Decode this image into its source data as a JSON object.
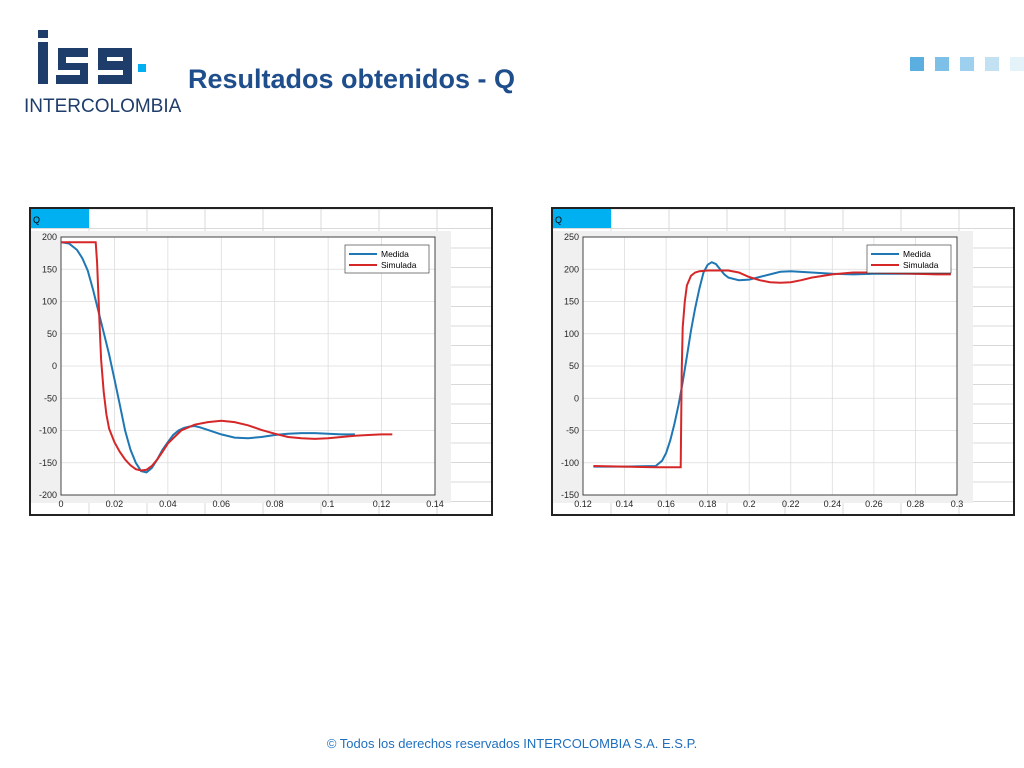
{
  "header": {
    "logo_text": "INTERCOLOMBIA",
    "title": "Resultados obtenidos - Q"
  },
  "colors": {
    "title": "#1f4e8c",
    "logo": "#1f3d6b",
    "accent": "#00b0f0",
    "medida": "#1f77b4",
    "simulada": "#d62728"
  },
  "footer": {
    "text": "© Todos los derechos reservados INTERCOLOMBIA S.A. E.S.P."
  },
  "chart_data": [
    {
      "type": "line",
      "tab_label": "Q",
      "title": "",
      "xlabel": "",
      "ylabel": "",
      "xlim": [
        0,
        0.14
      ],
      "ylim": [
        -200,
        200
      ],
      "xticks": [
        0,
        0.02,
        0.04,
        0.06,
        0.08,
        0.1,
        0.12,
        0.14
      ],
      "xtick_labels": [
        "0",
        "0.02",
        "0.04",
        "0.06",
        "0.08",
        "0.1",
        "0.12",
        "0.14"
      ],
      "yticks": [
        200,
        150,
        100,
        50,
        0,
        -50,
        -100,
        -150,
        -200
      ],
      "ytick_labels": [
        "200",
        "150",
        "100",
        "50",
        "0",
        "-50",
        "-100",
        "-150",
        "-200"
      ],
      "grid": true,
      "legend": "top-right",
      "series": [
        {
          "name": "Medida",
          "color": "#1f77b4",
          "x": [
            0,
            0.003,
            0.006,
            0.008,
            0.01,
            0.012,
            0.014,
            0.016,
            0.018,
            0.02,
            0.022,
            0.024,
            0.026,
            0.028,
            0.03,
            0.032,
            0.034,
            0.036,
            0.038,
            0.04,
            0.042,
            0.044,
            0.046,
            0.048,
            0.05,
            0.052,
            0.055,
            0.06,
            0.065,
            0.07,
            0.075,
            0.08,
            0.085,
            0.09,
            0.095,
            0.1,
            0.105,
            0.11
          ],
          "y": [
            192,
            190,
            180,
            167,
            148,
            118,
            85,
            52,
            18,
            -20,
            -60,
            -100,
            -130,
            -150,
            -163,
            -165,
            -158,
            -145,
            -130,
            -118,
            -107,
            -100,
            -96,
            -94,
            -93,
            -95,
            -99,
            -106,
            -111,
            -112,
            -110,
            -107,
            -105,
            -104,
            -104,
            -105,
            -106,
            -106
          ]
        },
        {
          "name": "Simulada",
          "color": "#d62728",
          "x": [
            0,
            0.013,
            0.0135,
            0.014,
            0.0145,
            0.015,
            0.016,
            0.017,
            0.018,
            0.02,
            0.022,
            0.024,
            0.026,
            0.028,
            0.03,
            0.032,
            0.034,
            0.036,
            0.038,
            0.04,
            0.045,
            0.05,
            0.055,
            0.06,
            0.065,
            0.07,
            0.075,
            0.08,
            0.085,
            0.09,
            0.095,
            0.1,
            0.105,
            0.11,
            0.115,
            0.12,
            0.124
          ],
          "y": [
            192,
            192,
            160,
            110,
            60,
            10,
            -40,
            -75,
            -97,
            -118,
            -133,
            -145,
            -154,
            -160,
            -162,
            -161,
            -155,
            -145,
            -133,
            -120,
            -100,
            -91,
            -87,
            -85,
            -87,
            -92,
            -99,
            -105,
            -110,
            -112,
            -113,
            -112,
            -110,
            -108,
            -107,
            -106,
            -106
          ]
        }
      ]
    },
    {
      "type": "line",
      "tab_label": "Q",
      "title": "",
      "xlabel": "",
      "ylabel": "",
      "xlim": [
        0.12,
        0.3
      ],
      "ylim": [
        -150,
        250
      ],
      "xticks": [
        0.12,
        0.14,
        0.16,
        0.18,
        0.2,
        0.22,
        0.24,
        0.26,
        0.28,
        0.3
      ],
      "xtick_labels": [
        "0.12",
        "0.14",
        "0.16",
        "0.18",
        "0.2",
        "0.22",
        "0.24",
        "0.26",
        "0.28",
        "0.3"
      ],
      "yticks": [
        250,
        200,
        150,
        100,
        50,
        0,
        -50,
        -100,
        -150
      ],
      "ytick_labels": [
        "250",
        "200",
        "150",
        "100",
        "50",
        "0",
        "-50",
        "-100",
        "-150"
      ],
      "grid": true,
      "legend": "top-right",
      "series": [
        {
          "name": "Medida",
          "color": "#1f77b4",
          "x": [
            0.125,
            0.14,
            0.155,
            0.158,
            0.16,
            0.162,
            0.164,
            0.166,
            0.168,
            0.17,
            0.172,
            0.174,
            0.176,
            0.178,
            0.18,
            0.182,
            0.184,
            0.186,
            0.188,
            0.19,
            0.195,
            0.2,
            0.205,
            0.21,
            0.215,
            0.22,
            0.23,
            0.24,
            0.25,
            0.26,
            0.27,
            0.28,
            0.29,
            0.297
          ],
          "y": [
            -106,
            -106,
            -105,
            -97,
            -85,
            -65,
            -40,
            -10,
            25,
            65,
            105,
            140,
            170,
            195,
            207,
            211,
            208,
            200,
            192,
            187,
            183,
            184,
            188,
            192,
            196,
            197,
            195,
            193,
            192,
            193,
            193,
            193,
            193,
            193
          ]
        },
        {
          "name": "Simulada",
          "color": "#d62728",
          "x": [
            0.125,
            0.14,
            0.155,
            0.167,
            0.1675,
            0.168,
            0.169,
            0.17,
            0.172,
            0.174,
            0.176,
            0.18,
            0.185,
            0.19,
            0.195,
            0.2,
            0.205,
            0.21,
            0.215,
            0.22,
            0.225,
            0.23,
            0.24,
            0.25,
            0.26,
            0.27,
            0.28,
            0.29,
            0.297
          ],
          "y": [
            -105,
            -106,
            -107,
            -107,
            40,
            110,
            150,
            175,
            190,
            195,
            197,
            198,
            198,
            198,
            195,
            188,
            183,
            180,
            179,
            180,
            183,
            187,
            192,
            195,
            195,
            194,
            193,
            192,
            192
          ]
        }
      ]
    }
  ]
}
